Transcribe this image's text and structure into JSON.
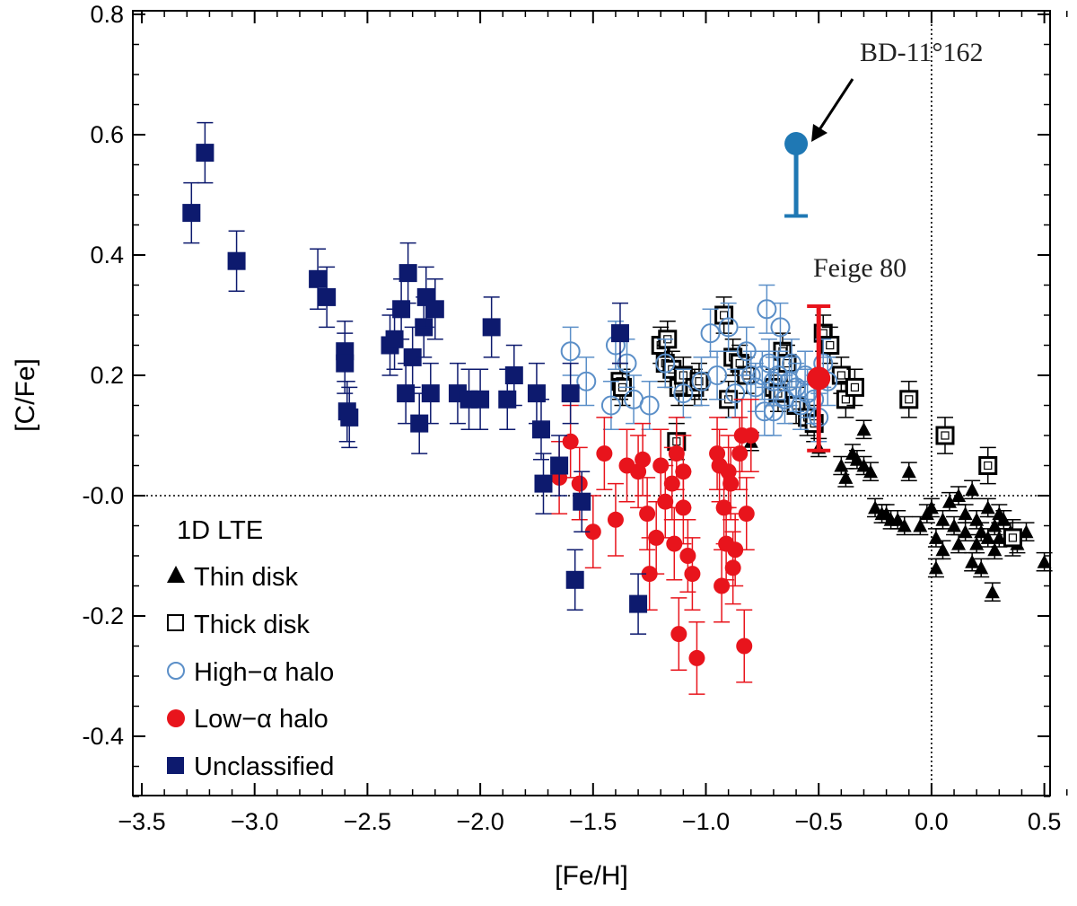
{
  "chart_data": {
    "type": "scatter",
    "xlabel": "[Fe/H]",
    "ylabel": "[C/Fe]",
    "xlim": [
      -3.5,
      0.6
    ],
    "ylim": [
      -0.5,
      0.8
    ],
    "xticks": [
      -3.5,
      -3.0,
      -2.5,
      -2.0,
      -1.5,
      -1.0,
      -0.5,
      0.0,
      0.5
    ],
    "xtick_labels": [
      "−3.5",
      "−3.0",
      "−2.5",
      "−2.0",
      "−1.5",
      "−1.0",
      "−0.5",
      "0.0",
      "0.5"
    ],
    "yticks": [
      -0.4,
      -0.2,
      0.0,
      0.2,
      0.4,
      0.6,
      0.8
    ],
    "ytick_labels": [
      "-0.4",
      "-0.2",
      "-0.0",
      "0.2",
      "0.4",
      "0.6",
      "0.8"
    ],
    "reference_lines": {
      "x": 0.0,
      "y": 0.0
    },
    "legend_title": "1D LTE",
    "legend_position": "bottom-left",
    "series": [
      {
        "name": "Thin disk",
        "marker": "triangle",
        "color": "#000000",
        "err": 0.015,
        "points": [
          [
            -0.8,
            0.09
          ],
          [
            -0.5,
            0.08
          ],
          [
            -0.4,
            0.05
          ],
          [
            -0.38,
            0.03
          ],
          [
            -0.35,
            0.07
          ],
          [
            -0.33,
            0.06
          ],
          [
            -0.3,
            0.05
          ],
          [
            -0.3,
            0.11
          ],
          [
            -0.27,
            0.04
          ],
          [
            -0.25,
            -0.02
          ],
          [
            -0.22,
            -0.03
          ],
          [
            -0.2,
            -0.03
          ],
          [
            -0.18,
            -0.04
          ],
          [
            -0.15,
            -0.04
          ],
          [
            -0.12,
            -0.05
          ],
          [
            -0.1,
            0.04
          ],
          [
            -0.05,
            -0.05
          ],
          [
            -0.02,
            -0.03
          ],
          [
            0.0,
            -0.02
          ],
          [
            0.02,
            -0.12
          ],
          [
            0.02,
            -0.07
          ],
          [
            0.05,
            -0.09
          ],
          [
            0.05,
            -0.04
          ],
          [
            0.08,
            -0.01
          ],
          [
            0.1,
            -0.05
          ],
          [
            0.12,
            -0.08
          ],
          [
            0.12,
            0.0
          ],
          [
            0.15,
            -0.03
          ],
          [
            0.15,
            -0.06
          ],
          [
            0.18,
            -0.11
          ],
          [
            0.18,
            0.01
          ],
          [
            0.2,
            -0.04
          ],
          [
            0.2,
            -0.08
          ],
          [
            0.22,
            -0.12
          ],
          [
            0.22,
            -0.06
          ],
          [
            0.25,
            -0.02
          ],
          [
            0.25,
            -0.07
          ],
          [
            0.27,
            -0.16
          ],
          [
            0.28,
            -0.09
          ],
          [
            0.28,
            -0.05
          ],
          [
            0.3,
            -0.03
          ],
          [
            0.3,
            -0.07
          ],
          [
            0.32,
            -0.04
          ],
          [
            0.35,
            -0.06
          ],
          [
            0.38,
            -0.08
          ],
          [
            0.42,
            -0.06
          ],
          [
            0.5,
            -0.11
          ]
        ]
      },
      {
        "name": "Thick disk",
        "marker": "square-open",
        "color": "#000000",
        "err": 0.03,
        "points": [
          [
            -1.38,
            0.19
          ],
          [
            -1.37,
            0.18
          ],
          [
            -1.2,
            0.25
          ],
          [
            -1.18,
            0.22
          ],
          [
            -1.17,
            0.26
          ],
          [
            -1.15,
            0.21
          ],
          [
            -1.13,
            0.09
          ],
          [
            -1.12,
            0.18
          ],
          [
            -1.1,
            0.2
          ],
          [
            -1.05,
            0.18
          ],
          [
            -1.03,
            0.19
          ],
          [
            -0.92,
            0.3
          ],
          [
            -0.9,
            0.16
          ],
          [
            -0.88,
            0.23
          ],
          [
            -0.85,
            0.22
          ],
          [
            -0.82,
            0.2
          ],
          [
            -0.7,
            0.18
          ],
          [
            -0.68,
            0.17
          ],
          [
            -0.66,
            0.24
          ],
          [
            -0.64,
            0.22
          ],
          [
            -0.6,
            0.15
          ],
          [
            -0.55,
            0.13
          ],
          [
            -0.52,
            0.12
          ],
          [
            -0.48,
            0.27
          ],
          [
            -0.45,
            0.25
          ],
          [
            -0.4,
            0.2
          ],
          [
            -0.38,
            0.16
          ],
          [
            -0.34,
            0.18
          ],
          [
            -0.1,
            0.16
          ],
          [
            0.06,
            0.1
          ],
          [
            0.25,
            0.05
          ],
          [
            0.36,
            -0.07
          ]
        ]
      },
      {
        "name": "High−α halo",
        "marker": "circle-open",
        "color": "#5b8fc8",
        "err": 0.04,
        "points": [
          [
            -1.6,
            0.24
          ],
          [
            -1.53,
            0.19
          ],
          [
            -1.42,
            0.15
          ],
          [
            -1.4,
            0.25
          ],
          [
            -1.35,
            0.22
          ],
          [
            -1.32,
            0.16
          ],
          [
            -1.25,
            0.15
          ],
          [
            -1.18,
            0.22
          ],
          [
            -1.1,
            0.17
          ],
          [
            -1.02,
            0.19
          ],
          [
            -0.98,
            0.27
          ],
          [
            -0.95,
            0.2
          ],
          [
            -0.9,
            0.28
          ],
          [
            -0.87,
            0.17
          ],
          [
            -0.82,
            0.24
          ],
          [
            -0.8,
            0.2
          ],
          [
            -0.78,
            0.18
          ],
          [
            -0.75,
            0.2
          ],
          [
            -0.74,
            0.14
          ],
          [
            -0.73,
            0.31
          ],
          [
            -0.72,
            0.22
          ],
          [
            -0.7,
            0.19
          ],
          [
            -0.7,
            0.14
          ],
          [
            -0.68,
            0.2
          ],
          [
            -0.67,
            0.28
          ],
          [
            -0.65,
            0.16
          ],
          [
            -0.63,
            0.19
          ],
          [
            -0.62,
            0.22
          ],
          [
            -0.6,
            0.18
          ],
          [
            -0.58,
            0.15
          ],
          [
            -0.56,
            0.2
          ],
          [
            -0.55,
            0.17
          ],
          [
            -0.52,
            0.16
          ],
          [
            -0.5,
            0.13
          ],
          [
            -0.48,
            0.22
          ],
          [
            -0.46,
            0.19
          ]
        ]
      },
      {
        "name": "Low−α halo",
        "marker": "circle-filled",
        "color": "#e8141c",
        "err": 0.06,
        "points": [
          [
            -1.65,
            0.03
          ],
          [
            -1.6,
            0.09
          ],
          [
            -1.56,
            0.02
          ],
          [
            -1.5,
            -0.06
          ],
          [
            -1.45,
            0.07
          ],
          [
            -1.4,
            -0.04
          ],
          [
            -1.35,
            0.05
          ],
          [
            -1.3,
            0.04
          ],
          [
            -1.28,
            0.06
          ],
          [
            -1.26,
            -0.03
          ],
          [
            -1.25,
            -0.13
          ],
          [
            -1.22,
            -0.07
          ],
          [
            -1.2,
            0.05
          ],
          [
            -1.18,
            -0.01
          ],
          [
            -1.15,
            0.02
          ],
          [
            -1.14,
            -0.08
          ],
          [
            -1.13,
            0.07
          ],
          [
            -1.12,
            -0.23
          ],
          [
            -1.1,
            0.04
          ],
          [
            -1.1,
            -0.02
          ],
          [
            -1.08,
            -0.1
          ],
          [
            -1.06,
            -0.13
          ],
          [
            -1.04,
            -0.27
          ],
          [
            -0.95,
            0.07
          ],
          [
            -0.94,
            0.05
          ],
          [
            -0.93,
            -0.15
          ],
          [
            -0.92,
            -0.02
          ],
          [
            -0.91,
            -0.08
          ],
          [
            -0.9,
            0.04
          ],
          [
            -0.89,
            0.02
          ],
          [
            -0.88,
            -0.12
          ],
          [
            -0.87,
            -0.09
          ],
          [
            -0.85,
            0.07
          ],
          [
            -0.84,
            0.1
          ],
          [
            -0.83,
            -0.25
          ],
          [
            -0.82,
            -0.03
          ],
          [
            -0.8,
            0.1
          ]
        ]
      },
      {
        "name": "Unclassified",
        "marker": "square-filled",
        "color": "#0d1a6e",
        "err": 0.05,
        "points": [
          [
            -3.28,
            0.47
          ],
          [
            -3.22,
            0.57
          ],
          [
            -3.08,
            0.39
          ],
          [
            -2.72,
            0.36
          ],
          [
            -2.68,
            0.33
          ],
          [
            -2.6,
            0.24
          ],
          [
            -2.6,
            0.22
          ],
          [
            -2.59,
            0.14
          ],
          [
            -2.58,
            0.13
          ],
          [
            -2.4,
            0.25
          ],
          [
            -2.38,
            0.26
          ],
          [
            -2.35,
            0.31
          ],
          [
            -2.33,
            0.17
          ],
          [
            -2.32,
            0.37
          ],
          [
            -2.3,
            0.23
          ],
          [
            -2.27,
            0.12
          ],
          [
            -2.25,
            0.28
          ],
          [
            -2.24,
            0.33
          ],
          [
            -2.22,
            0.17
          ],
          [
            -2.2,
            0.31
          ],
          [
            -2.1,
            0.17
          ],
          [
            -2.05,
            0.16
          ],
          [
            -2.0,
            0.16
          ],
          [
            -1.95,
            0.28
          ],
          [
            -1.88,
            0.16
          ],
          [
            -1.85,
            0.2
          ],
          [
            -1.75,
            0.17
          ],
          [
            -1.73,
            0.11
          ],
          [
            -1.72,
            0.02
          ],
          [
            -1.65,
            0.05
          ],
          [
            -1.6,
            0.17
          ],
          [
            -1.58,
            -0.14
          ],
          [
            -1.55,
            -0.01
          ],
          [
            -1.38,
            0.27
          ],
          [
            -1.3,
            -0.18
          ]
        ]
      }
    ],
    "highlights": [
      {
        "name": "BD-11°162",
        "x": -0.6,
        "y": 0.585,
        "err_low": 0.12,
        "color": "#1f78b4"
      },
      {
        "name": "Feige 80",
        "x": -0.5,
        "y": 0.195,
        "err": 0.12,
        "color": "#e8141c"
      }
    ],
    "annotations": {
      "bd": "BD-11°162",
      "feige": "Feige 80"
    }
  }
}
